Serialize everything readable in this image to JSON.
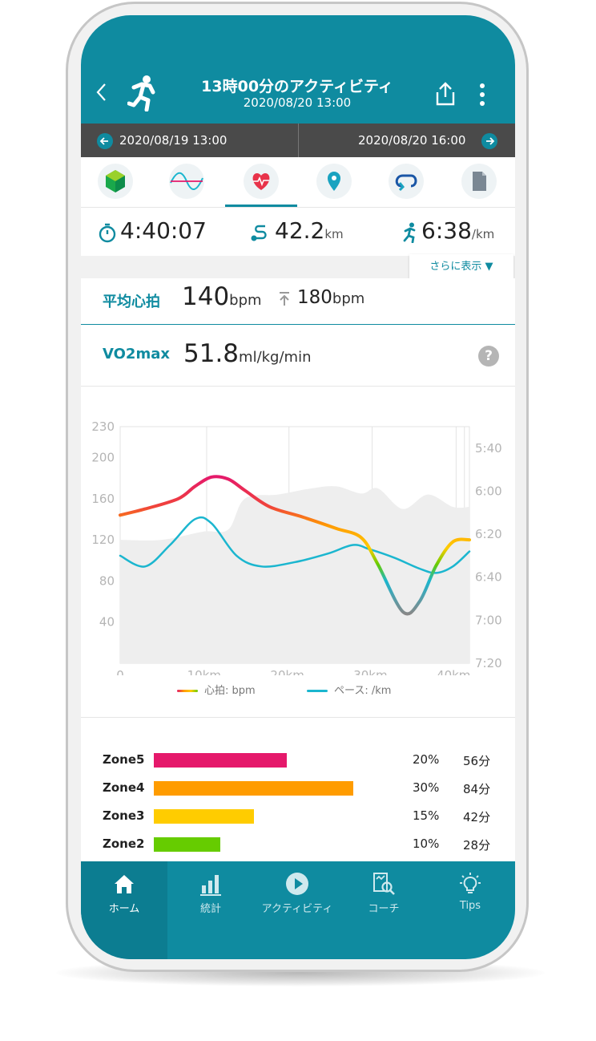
{
  "header": {
    "title": "13時00分のアクティビティ",
    "subtitle": "2020/08/20  13:00",
    "back_icon": "chevron-left-icon",
    "activity_icon": "running-icon",
    "share_icon": "share-icon",
    "more_icon": "more-vertical-icon"
  },
  "date_nav": {
    "prev_date": "2020/08/19  13:00",
    "next_date": "2020/08/20  16:00"
  },
  "tabs": [
    {
      "icon": "summary-icon"
    },
    {
      "icon": "wave-icon"
    },
    {
      "icon": "heart-rate-icon",
      "active": true
    },
    {
      "icon": "map-pin-icon"
    },
    {
      "icon": "lap-icon"
    },
    {
      "icon": "document-icon"
    }
  ],
  "stats": {
    "duration": "4:40:07",
    "distance": "42.2",
    "distance_unit": "km",
    "pace": "6:38",
    "pace_unit": "/km",
    "more_label": "さらに表示 ▼"
  },
  "heart_rate": {
    "label": "平均心拍",
    "avg": "140",
    "avg_unit": "bpm",
    "max": "180",
    "max_unit": "bpm"
  },
  "vo2max": {
    "label": "VO2max",
    "value": "51.8",
    "unit": "ml/kg/min",
    "help": "?"
  },
  "chart_data": {
    "type": "line",
    "x_tick_labels": [
      "0",
      "10km",
      "20km",
      "30km",
      "40km"
    ],
    "x_ticks": [
      0,
      10,
      20,
      30,
      40
    ],
    "xlim": [
      0,
      42
    ],
    "y_left_ticks": [
      "230",
      "200",
      "160",
      "120",
      "80",
      "40"
    ],
    "y_left_tick_values": [
      230,
      200,
      160,
      120,
      80,
      40
    ],
    "ylim_left": [
      0,
      230
    ],
    "y_right_ticks": [
      "5:40",
      "6:00",
      "6:20",
      "6:40",
      "7:00",
      "7:20"
    ],
    "y_right_tick_values": [
      340,
      360,
      380,
      400,
      420,
      440
    ],
    "ylim_right": [
      330,
      440
    ],
    "series": [
      {
        "name": "心拍: bpm",
        "axis": "left",
        "color": "gradient",
        "x": [
          0,
          3,
          7,
          9,
          11,
          13,
          15,
          18,
          22,
          26,
          29,
          31,
          34,
          36,
          38,
          40,
          42
        ],
        "y": [
          144,
          150,
          160,
          172,
          181,
          179,
          168,
          152,
          142,
          131,
          122,
          96,
          50,
          60,
          95,
          118,
          120
        ]
      },
      {
        "name": "ペース: /km",
        "axis": "right",
        "color": "#1bb6cf",
        "x": [
          0,
          3,
          6,
          9,
          11,
          14,
          17,
          21,
          25,
          28,
          30,
          33,
          36,
          38,
          40,
          42
        ],
        "y": [
          390,
          395,
          385,
          373,
          375,
          390,
          395,
          393,
          389,
          385,
          387,
          391,
          396,
          398,
          395,
          388
        ]
      }
    ],
    "background_area": {
      "x": [
        0,
        5,
        10,
        13,
        15,
        19,
        23,
        26,
        29,
        31,
        34,
        37,
        40,
        42
      ],
      "y": [
        120,
        120,
        128,
        130,
        160,
        164,
        170,
        172,
        165,
        170,
        150,
        164,
        152,
        152
      ]
    },
    "vertical_gridlines": [
      10.4,
      20.3,
      30.3,
      40.4,
      41.4
    ],
    "legend_position": "bottom"
  },
  "zones": [
    {
      "name": "Zone5",
      "fraction": 0.2,
      "pct": "20%",
      "minutes": "56分",
      "color": "#e5196b"
    },
    {
      "name": "Zone4",
      "fraction": 0.3,
      "pct": "30%",
      "minutes": "84分",
      "color": "#ff9c00"
    },
    {
      "name": "Zone3",
      "fraction": 0.15,
      "pct": "15%",
      "minutes": "42分",
      "color": "#ffcc00"
    },
    {
      "name": "Zone2",
      "fraction": 0.1,
      "pct": "10%",
      "minutes": "28分",
      "color": "#66cc00"
    }
  ],
  "bottom_nav": [
    {
      "label": "ホーム",
      "icon": "home-icon",
      "active": true
    },
    {
      "label": "統計",
      "icon": "bar-chart-icon"
    },
    {
      "label": "アクティビティ",
      "icon": "play-icon"
    },
    {
      "label": "コーチ",
      "icon": "coach-icon"
    },
    {
      "label": "Tips",
      "icon": "lightbulb-icon"
    }
  ],
  "colors": {
    "accent": "#0f8ba0",
    "dark_bar": "#4a4a4a",
    "pace_line": "#1bb6cf"
  }
}
